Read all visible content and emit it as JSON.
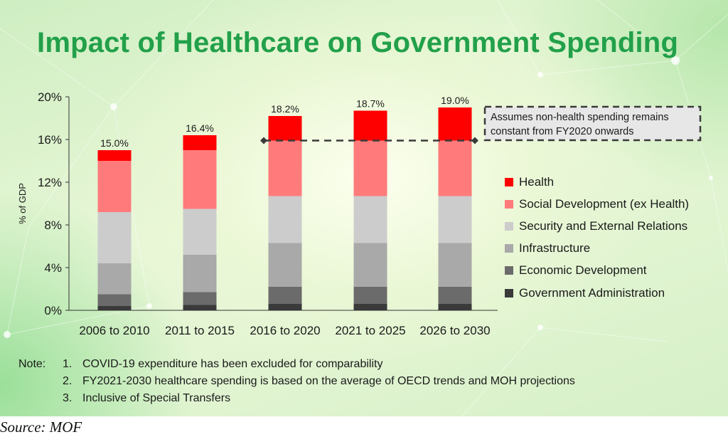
{
  "title": "Impact of Healthcare on Government Spending",
  "chart_data": {
    "type": "bar",
    "stacked": true,
    "ylabel": "% of GDP",
    "ylim": [
      0,
      20
    ],
    "y_ticks": [
      0,
      4,
      8,
      12,
      16,
      20
    ],
    "y_tick_labels": [
      "0%",
      "4%",
      "8%",
      "12%",
      "16%",
      "20%"
    ],
    "categories": [
      "2006 to 2010",
      "2011 to 2015",
      "2016 to 2020",
      "2021 to 2025",
      "2026 to 2030"
    ],
    "series": [
      {
        "name": "Government Administration",
        "color": "#3a3a3a",
        "values": [
          0.4,
          0.5,
          0.6,
          0.6,
          0.6
        ]
      },
      {
        "name": "Economic Development",
        "color": "#6b6b6b",
        "values": [
          1.1,
          1.2,
          1.6,
          1.6,
          1.6
        ]
      },
      {
        "name": "Infrastructure",
        "color": "#a9a9a9",
        "values": [
          2.9,
          3.5,
          4.1,
          4.1,
          4.1
        ]
      },
      {
        "name": "Security and External Relations",
        "color": "#cccccc",
        "values": [
          4.8,
          4.3,
          4.4,
          4.4,
          4.4
        ]
      },
      {
        "name": "Social Development (ex Health)",
        "color": "#ff7b7b",
        "values": [
          4.8,
          5.5,
          5.2,
          5.2,
          5.2
        ]
      },
      {
        "name": "Health",
        "color": "#ff0000",
        "values": [
          1.0,
          1.4,
          2.3,
          2.8,
          3.1
        ]
      }
    ],
    "totals": [
      15.0,
      16.4,
      18.2,
      18.7,
      19.0
    ],
    "total_labels": [
      "15.0%",
      "16.4%",
      "18.2%",
      "18.7%",
      "19.0%"
    ],
    "reference_line": {
      "value": 15.9,
      "style": "dashed"
    },
    "annotation": "Assumes non-health spending remains constant from FY2020 onwards",
    "legend_position": "right",
    "legend_order": [
      "Health",
      "Social Development (ex Health)",
      "Security and External Relations",
      "Infrastructure",
      "Economic Development",
      "Government Administration"
    ],
    "grid": false
  },
  "notes": {
    "prefix": "Note:",
    "items": [
      {
        "num": "1.",
        "text": "COVID-19 expenditure has been excluded for comparability"
      },
      {
        "num": "2.",
        "text": "FY2021-2030 healthcare spending is based on the average of OECD trends and MOH projections"
      },
      {
        "num": "3.",
        "text": "Inclusive of Special Transfers"
      }
    ]
  },
  "source": "Source: MOF",
  "colors": {
    "title_green": "#22a04a",
    "health_red": "#ff0000",
    "social_pink": "#ff7b7b"
  }
}
